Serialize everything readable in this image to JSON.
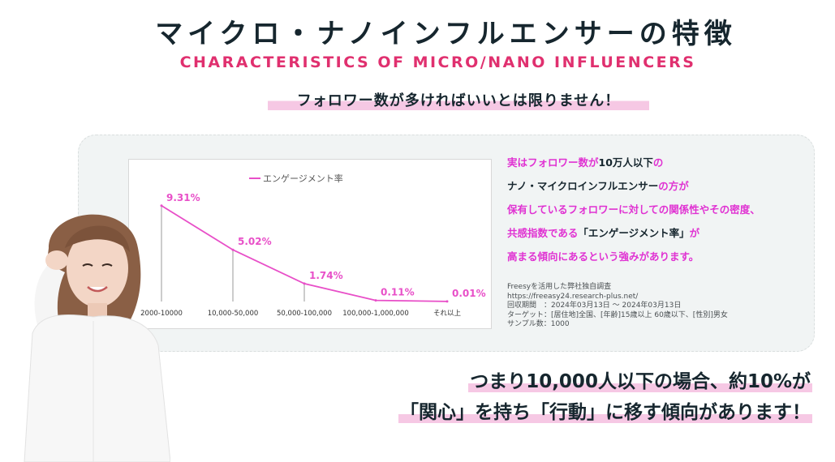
{
  "header": {
    "title_jp": "マイクロ・ナノインフルエンサーの特徴",
    "title_en": "CHARACTERISTICS OF MICRO/NANO INFLUENCERS",
    "subtitle": "フォロワー数が多ければいいとは限りません！"
  },
  "chart_data": {
    "type": "line",
    "legend": "エンゲージメント率",
    "categories": [
      "2000-10000",
      "10,000-50,000",
      "50,000-100,000",
      "100,000-1,000,000",
      "それ以上"
    ],
    "series": [
      {
        "name": "エンゲージメント率",
        "values": [
          9.31,
          5.02,
          1.74,
          0.11,
          0.01
        ],
        "color": "#e84fc8"
      }
    ],
    "data_labels": [
      "9.31%",
      "5.02%",
      "1.74%",
      "0.11%",
      "0.01%"
    ],
    "ylim": [
      0,
      10
    ],
    "grid": false,
    "legend_position": "top"
  },
  "description": {
    "line1_pink": "実はフォロワー数が",
    "line1_dark": "10万人以下",
    "line1_pink2": "の",
    "line2_dark": "ナノ・マイクロインフルエンサー",
    "line2_pink": "の方が",
    "line3": "保有しているフォロワーに対しての関係性やその密度、",
    "line4_pink": "共感指数である",
    "line4_dark": "「エンゲージメント率」",
    "line4_pink2": "が",
    "line5": "高まる傾向にあるという強みがあります。"
  },
  "source": {
    "line1": "Freesyを活用した弊社独自調査",
    "line2": "https://freeasy24.research-plus.net/",
    "line3": "回収期間　：2024年03月13日 ～ 2024年03月13日",
    "line4": "ターゲット：[居住地]全国、[年齢]15歳以上 60歳以下、[性別]男女",
    "line5": "サンプル数：1000"
  },
  "conclusion": {
    "line1": "つまり10,000人以下の場合、約10%が",
    "line2": "「関心」を持ち「行動」に移す傾向があります！"
  },
  "colors": {
    "accent_pink": "#e0306f",
    "magenta_text": "#e032d2",
    "line": "#e84fc8",
    "highlight": "#f6c8e4",
    "dark": "#16262e"
  }
}
